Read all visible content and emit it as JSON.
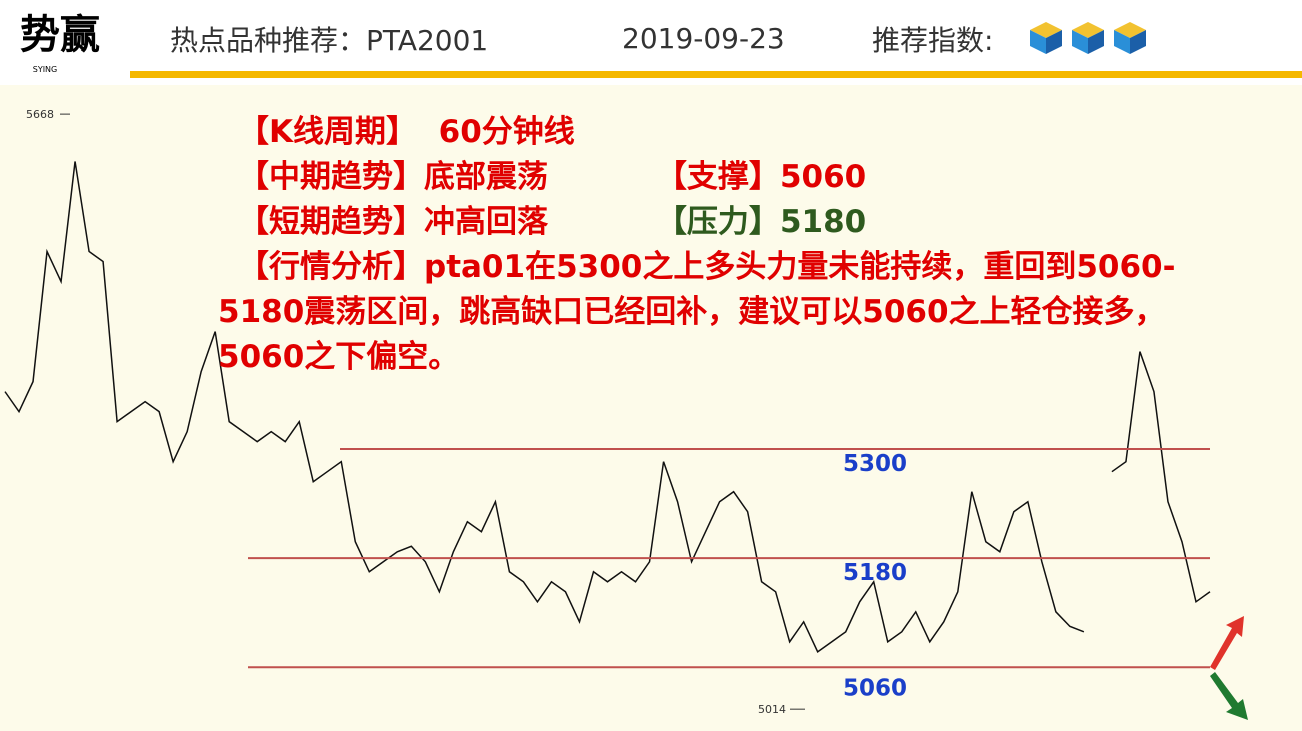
{
  "header": {
    "logo": "势赢",
    "logo_en": "SYING",
    "title": "热点品种推荐：PTA2001",
    "date": "2019-09-23",
    "rating_label": "推荐指数:",
    "rating": 3
  },
  "notes": {
    "period_label": "【K线周期】",
    "period": "60分钟线",
    "mid_label": "【中期趋势】",
    "mid": "底部震荡",
    "support_label": "【支撑】",
    "support": "5060",
    "short_label": "【短期趋势】",
    "short": "冲高回落",
    "resistance_label": "【压力】",
    "resistance": "5180",
    "analysis": "【行情分析】pta01在5300之上多头力量未能持续，重回到5060-5180震荡区间，跳高缺口已经回补，建议可以5060之上轻仓接多，5060之下偏空。"
  },
  "chart_data": {
    "type": "line",
    "color": "#111111",
    "ylim": [
      4990,
      5700
    ],
    "values": [
      5363,
      5341,
      5374,
      5517,
      5484,
      5616,
      5517,
      5506,
      5330,
      5341,
      5352,
      5341,
      5286,
      5319,
      5385,
      5429,
      5330,
      5319,
      5308,
      5319,
      5308,
      5330,
      5264,
      5275,
      5286,
      5198,
      5165,
      5176,
      5187,
      5193,
      5176,
      5143,
      5187,
      5220,
      5209,
      5242,
      5165,
      5154,
      5132,
      5154,
      5143,
      5110,
      5165,
      5154,
      5165,
      5154,
      5176,
      5286,
      5242,
      5176,
      5209,
      5242,
      5253,
      5231,
      5154,
      5143,
      5088,
      5110,
      5077,
      5088,
      5099,
      5132,
      5154,
      5088,
      5099,
      5121,
      5088,
      5110,
      5143,
      5253,
      5198,
      5187,
      5231,
      5242,
      5176,
      5121,
      5105,
      5099,
      null,
      5275,
      5286,
      5407,
      5363,
      5242,
      5198,
      5132,
      5143
    ],
    "high": 5668,
    "low": 5014,
    "levels": [
      5300,
      5180,
      5060
    ],
    "level_color": "#c0504d",
    "level_label_color": "#1a3fc9"
  }
}
